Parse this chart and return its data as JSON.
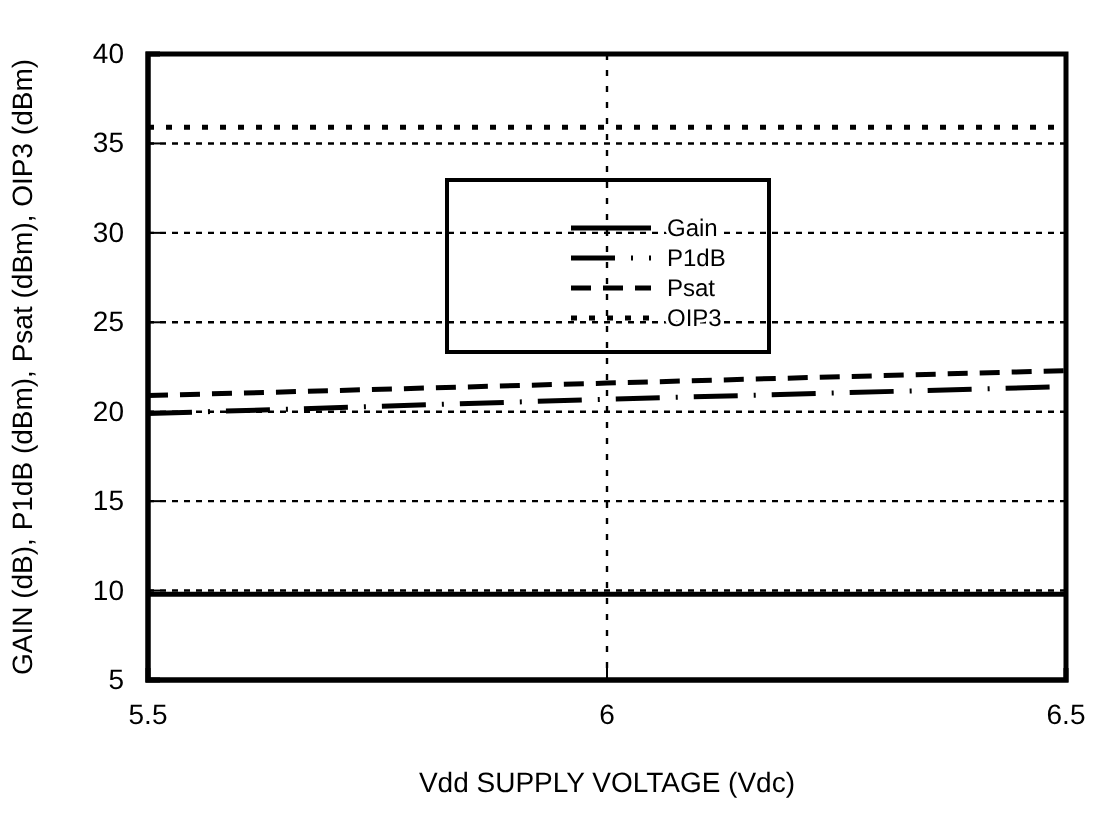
{
  "chart_data": {
    "type": "line",
    "xlabel": "Vdd SUPPLY VOLTAGE (Vdc)",
    "ylabel": "GAIN (dB), P1dB (dBm), Psat (dBm), OIP3 (dBm)",
    "x": [
      5.5,
      6,
      6.5
    ],
    "series": [
      {
        "name": "Gain",
        "color": "#000000",
        "line_style": "solid",
        "values": [
          9.8,
          9.8,
          9.8
        ]
      },
      {
        "name": "P1dB",
        "color": "#000000",
        "line_style": "dashdot",
        "values": [
          19.9,
          20.7,
          21.4
        ]
      },
      {
        "name": "Psat",
        "color": "#000000",
        "line_style": "dashed",
        "values": [
          20.9,
          21.6,
          22.3
        ]
      },
      {
        "name": "OIP3",
        "color": "#000000",
        "line_style": "dotted",
        "values": [
          35.9,
          35.9,
          35.9
        ]
      }
    ],
    "xlim": [
      5.5,
      6.5
    ],
    "xticks": [
      5.5,
      6,
      6.5
    ],
    "ylim": [
      5,
      40
    ],
    "yticks": [
      5,
      10,
      15,
      20,
      25,
      30,
      35,
      40
    ],
    "grid": true,
    "legend": "top"
  }
}
